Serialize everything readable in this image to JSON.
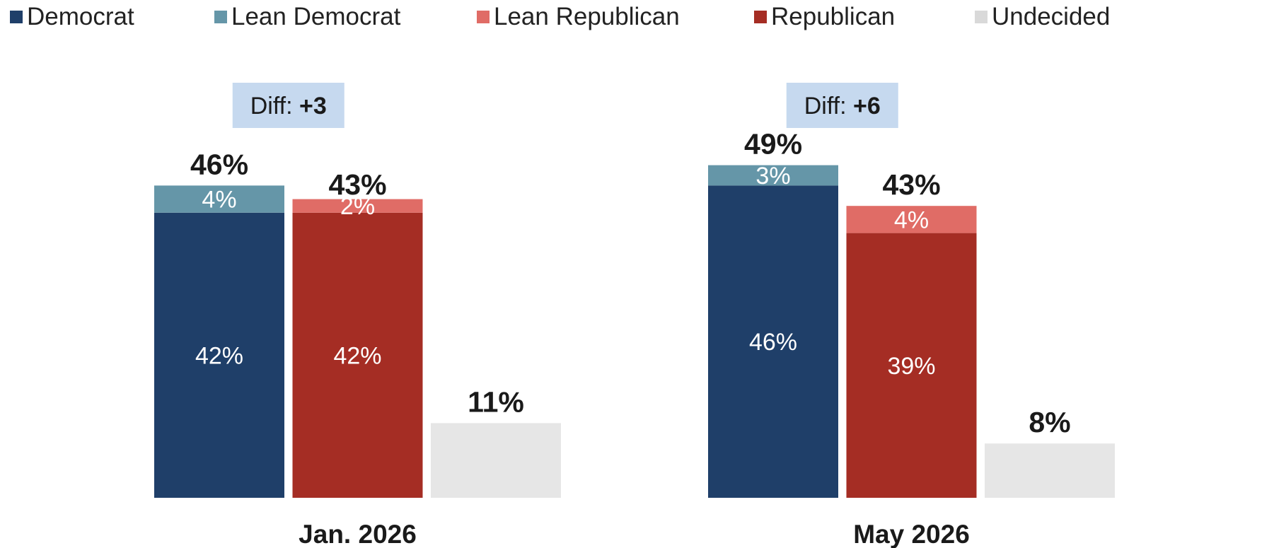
{
  "chart_data": {
    "type": "bar",
    "legend_position": "top",
    "grid": false,
    "ylim": [
      0,
      50
    ],
    "legend": [
      {
        "key": "dem",
        "name": "Democrat",
        "color": "#1f3f69"
      },
      {
        "key": "lean_dem",
        "name": "Lean Democrat",
        "color": "#6596a8"
      },
      {
        "key": "lean_rep",
        "name": "Lean Republican",
        "color": "#e06c66"
      },
      {
        "key": "rep",
        "name": "Republican",
        "color": "#a52d24"
      },
      {
        "key": "und",
        "name": "Undecided",
        "color": "#d9d9d9"
      }
    ],
    "undecided_bar_color": "#e6e6e6",
    "diff_box_color": "#c6d9ef",
    "groups": [
      {
        "category": "Jan. 2026",
        "diff_prefix": "Diff: ",
        "diff_value": "+3",
        "dem": 42,
        "lean_dem": 4,
        "dem_total": 46,
        "rep": 42,
        "lean_rep": 2,
        "rep_total": 43,
        "und": 11,
        "labels": {
          "dem": "42%",
          "lean_dem": "4%",
          "dem_total": "46%",
          "rep": "42%",
          "lean_rep": "2%",
          "rep_total": "43%",
          "und": "11%"
        }
      },
      {
        "category": "May 2026",
        "diff_prefix": "Diff: ",
        "diff_value": "+6",
        "dem": 46,
        "lean_dem": 3,
        "dem_total": 49,
        "rep": 39,
        "lean_rep": 4,
        "rep_total": 43,
        "und": 8,
        "labels": {
          "dem": "46%",
          "lean_dem": "3%",
          "dem_total": "49%",
          "rep": "39%",
          "lean_rep": "4%",
          "rep_total": "43%",
          "und": "8%"
        }
      }
    ]
  }
}
